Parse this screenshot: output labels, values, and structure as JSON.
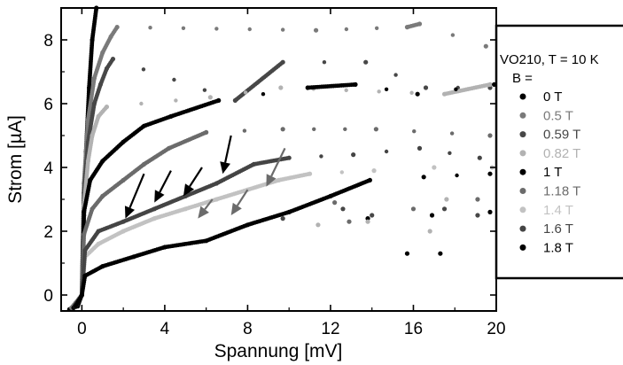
{
  "chart_data": {
    "type": "scatter",
    "title": "",
    "xlabel": "Spannung [mV]",
    "ylabel": "Strom [µA]",
    "xlim": [
      -1,
      20
    ],
    "ylim": [
      -0.5,
      9.0
    ],
    "x_ticks": [
      0,
      4,
      8,
      12,
      16,
      20
    ],
    "y_ticks": [
      0,
      2,
      4,
      6,
      8
    ],
    "x_tick_labels": [
      "0",
      "4",
      "8",
      "12",
      "16",
      "20"
    ],
    "y_tick_labels": [
      "0",
      "2",
      "4",
      "6",
      "8"
    ],
    "grid": false,
    "legend": {
      "position": "right-outside",
      "title_line1": "VO210, T = 10 K",
      "title_line2": "B ="
    },
    "series": [
      {
        "name": "0 T",
        "color": "#000000",
        "points": [
          [
            -0.6,
            -0.45
          ],
          [
            -0.2,
            -0.35
          ],
          [
            0,
            0
          ],
          [
            0.1,
            2.5
          ],
          [
            0.2,
            4.5
          ],
          [
            0.35,
            6.5
          ],
          [
            0.5,
            8.0
          ],
          [
            0.7,
            9.0
          ]
        ]
      },
      {
        "name": "0.5 T",
        "color": "#7a7a7a",
        "points": [
          [
            -0.5,
            -0.4
          ],
          [
            0,
            0
          ],
          [
            0.1,
            3.5
          ],
          [
            0.3,
            5.5
          ],
          [
            0.6,
            6.8
          ],
          [
            1.0,
            7.6
          ],
          [
            1.4,
            8.1
          ],
          [
            1.7,
            8.4
          ],
          [
            11.3,
            8.3
          ],
          [
            15.7,
            8.4
          ],
          [
            16.3,
            8.5
          ],
          [
            19.5,
            7.8
          ]
        ]
      },
      {
        "name": "0.59 T",
        "color": "#474747",
        "points": [
          [
            -0.4,
            -0.4
          ],
          [
            0,
            0
          ],
          [
            0.1,
            3.2
          ],
          [
            0.3,
            4.8
          ],
          [
            0.6,
            6.0
          ],
          [
            0.9,
            6.6
          ],
          [
            1.2,
            7.1
          ],
          [
            1.5,
            7.4
          ],
          [
            7.4,
            6.1
          ],
          [
            9.7,
            7.3
          ],
          [
            13.7,
            7.3
          ],
          [
            16.6,
            6.5
          ],
          [
            19.7,
            6.5
          ]
        ]
      },
      {
        "name": "0.82 T",
        "color": "#b2b2b2",
        "points": [
          [
            -0.4,
            -0.4
          ],
          [
            0,
            0
          ],
          [
            0.1,
            2.8
          ],
          [
            0.3,
            4.2
          ],
          [
            0.5,
            5.0
          ],
          [
            0.8,
            5.6
          ],
          [
            1.2,
            5.9
          ],
          [
            6.2,
            6.2
          ],
          [
            9.6,
            6.5
          ],
          [
            17.5,
            6.3
          ],
          [
            19.7,
            6.6
          ]
        ]
      },
      {
        "name": "1 T",
        "color": "#000000",
        "points": [
          [
            -0.4,
            -0.4
          ],
          [
            0,
            0
          ],
          [
            0.1,
            2.6
          ],
          [
            0.4,
            3.6
          ],
          [
            1.0,
            4.2
          ],
          [
            2.0,
            4.8
          ],
          [
            3.0,
            5.3
          ],
          [
            4.3,
            5.6
          ],
          [
            6.6,
            6.1
          ],
          [
            10.9,
            6.5
          ],
          [
            13.2,
            6.6
          ],
          [
            16.2,
            6.3
          ],
          [
            19.9,
            6.6
          ]
        ]
      },
      {
        "name": "1.18 T",
        "color": "#6b6b6b",
        "points": [
          [
            -0.3,
            -0.35
          ],
          [
            0,
            0
          ],
          [
            0.1,
            1.9
          ],
          [
            0.5,
            2.7
          ],
          [
            1.0,
            3.1
          ],
          [
            2.0,
            3.6
          ],
          [
            3.0,
            4.1
          ],
          [
            4.2,
            4.6
          ],
          [
            6.0,
            5.1
          ],
          [
            9.7,
            5.2
          ],
          [
            14.2,
            5.2
          ],
          [
            19.7,
            5.0
          ]
        ]
      },
      {
        "name": "1.4 T",
        "color": "#c2c2c2",
        "points": [
          [
            -0.3,
            -0.35
          ],
          [
            0,
            0
          ],
          [
            0.15,
            1.2
          ],
          [
            0.8,
            1.6
          ],
          [
            2.0,
            2.0
          ],
          [
            3.5,
            2.4
          ],
          [
            5.0,
            2.7
          ],
          [
            6.5,
            3.0
          ],
          [
            8.0,
            3.3
          ],
          [
            9.5,
            3.6
          ],
          [
            11.0,
            3.8
          ],
          [
            14.1,
            3.9
          ],
          [
            17.0,
            4.0
          ],
          [
            19.8,
            4.0
          ]
        ]
      },
      {
        "name": "1.6 T",
        "color": "#444444",
        "points": [
          [
            -0.3,
            -0.35
          ],
          [
            0,
            0
          ],
          [
            0.15,
            1.4
          ],
          [
            0.8,
            2.0
          ],
          [
            2.0,
            2.3
          ],
          [
            3.5,
            2.7
          ],
          [
            5.0,
            3.1
          ],
          [
            6.5,
            3.5
          ],
          [
            8.3,
            4.1
          ],
          [
            10.0,
            4.3
          ],
          [
            13.1,
            4.4
          ],
          [
            16.3,
            4.6
          ],
          [
            19.2,
            4.3
          ]
        ]
      },
      {
        "name": "1.8 T",
        "color": "#000000",
        "points": [
          [
            -0.3,
            -0.35
          ],
          [
            0,
            0
          ],
          [
            0.15,
            0.6
          ],
          [
            1.0,
            0.9
          ],
          [
            2.5,
            1.2
          ],
          [
            4.0,
            1.5
          ],
          [
            6.0,
            1.7
          ],
          [
            8.0,
            2.2
          ],
          [
            10.0,
            2.6
          ],
          [
            12.0,
            3.1
          ],
          [
            13.9,
            3.6
          ],
          [
            16.5,
            3.7
          ],
          [
            19.7,
            3.8
          ]
        ]
      }
    ],
    "stray_points": [
      {
        "color": "#000000",
        "points": [
          [
            15.7,
            1.3
          ],
          [
            17.3,
            1.3
          ],
          [
            13.8,
            2.4
          ],
          [
            16.9,
            2.5
          ],
          [
            19.7,
            2.6
          ]
        ]
      },
      {
        "color": "#474747",
        "points": [
          [
            9.7,
            2.4
          ],
          [
            12.6,
            2.7
          ],
          [
            14.0,
            2.5
          ],
          [
            17.5,
            2.7
          ],
          [
            19.1,
            2.5
          ]
        ]
      },
      {
        "color": "#b2b2b2",
        "points": [
          [
            11.4,
            2.2
          ],
          [
            13.8,
            2.3
          ],
          [
            16.8,
            2.0
          ],
          [
            17.6,
            3.0
          ]
        ]
      },
      {
        "color": "#6b6b6b",
        "points": [
          [
            12.2,
            2.9
          ],
          [
            16.0,
            2.7
          ],
          [
            19.1,
            3.0
          ],
          [
            12.9,
            2.3
          ]
        ]
      }
    ],
    "annotations": {
      "arrows": [
        {
          "from": [
            3.0,
            3.8
          ],
          "to": [
            2.1,
            2.4
          ],
          "color": "#000000"
        },
        {
          "from": [
            4.3,
            3.9
          ],
          "to": [
            3.5,
            2.9
          ],
          "color": "#000000"
        },
        {
          "from": [
            5.8,
            4.0
          ],
          "to": [
            4.9,
            3.1
          ],
          "color": "#000000"
        },
        {
          "from": [
            7.2,
            5.0
          ],
          "to": [
            6.8,
            3.8
          ],
          "color": "#000000"
        },
        {
          "from": [
            6.3,
            3.0
          ],
          "to": [
            5.6,
            2.4
          ],
          "color": "#6b6b6b"
        },
        {
          "from": [
            8.0,
            3.3
          ],
          "to": [
            7.2,
            2.5
          ],
          "color": "#6b6b6b"
        },
        {
          "from": [
            9.8,
            4.6
          ],
          "to": [
            8.9,
            3.4
          ],
          "color": "#6b6b6b"
        }
      ]
    }
  }
}
